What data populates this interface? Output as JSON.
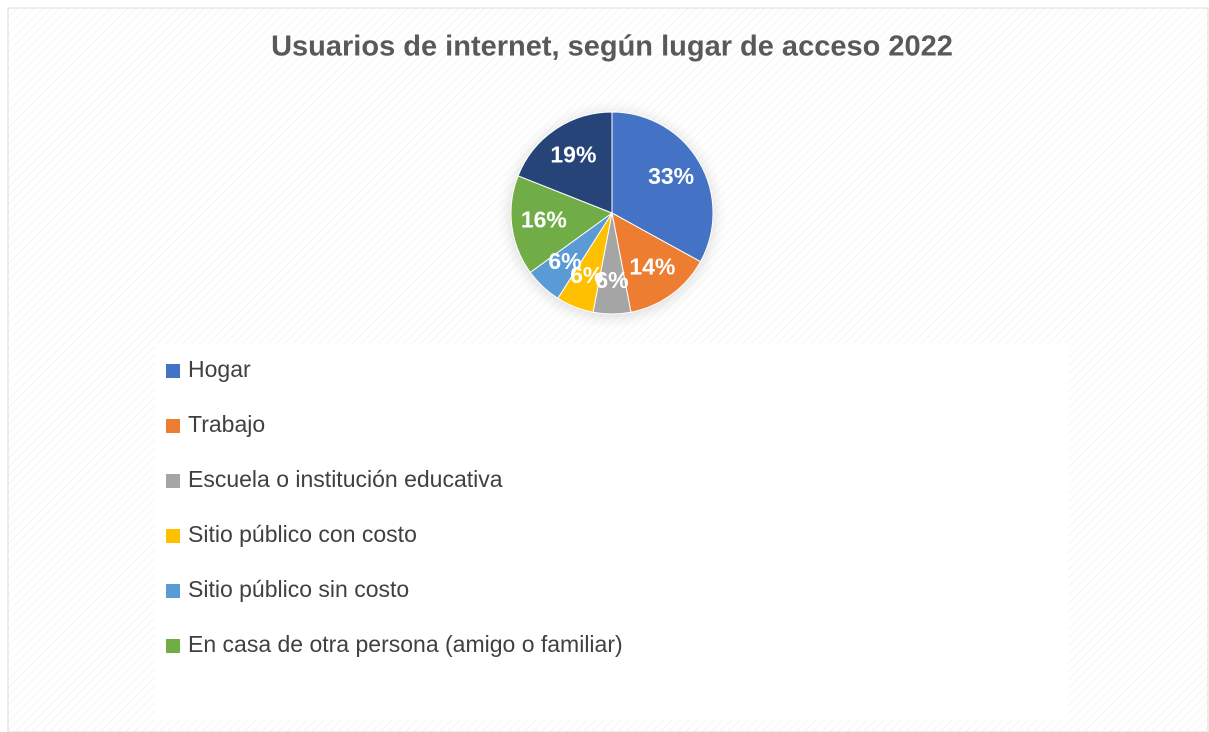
{
  "chart_data": {
    "type": "pie",
    "title": "Usuarios de internet, según lugar de acceso 2022",
    "categories": [
      "Hogar",
      "Trabajo",
      "Escuela o institución educativa",
      "Sitio público con costo",
      "Sitio público sin costo",
      "En casa de otra persona (amigo o familiar)",
      null
    ],
    "values": [
      33,
      14,
      6,
      6,
      6,
      16,
      19
    ],
    "value_labels": [
      "33%",
      "14%",
      "6%",
      "6%",
      "6%",
      "16%",
      "19%"
    ],
    "colors": [
      "#4472c4",
      "#ed7d31",
      "#a5a5a5",
      "#ffc000",
      "#5b9bd5",
      "#70ad47",
      "#264478"
    ],
    "legend": "bottom"
  }
}
